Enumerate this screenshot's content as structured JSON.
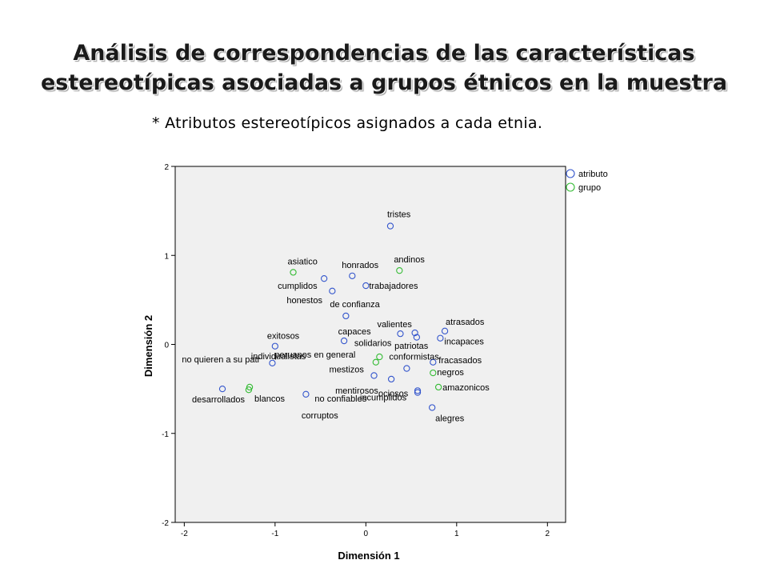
{
  "slide": {
    "title_line1": "Análisis de correspondencias de las características",
    "title_line2": "estereotípicas asociadas a grupos étnicos en la muestra",
    "subtitle": "* Atributos estereotípicos asignados a cada etnia."
  },
  "chart_data": {
    "type": "scatter",
    "xlabel": "Dimensión 1",
    "ylabel": "Dimensión 2",
    "xlim": [
      -2.1,
      2.2
    ],
    "ylim": [
      -2,
      2
    ],
    "xticks": [
      -2,
      -1,
      0,
      1,
      2
    ],
    "yticks": [
      -2,
      -1,
      0,
      1,
      2
    ],
    "grid": false,
    "legend_position": "top-right",
    "colors": {
      "atributo": "#3355cc",
      "grupo": "#33bb33",
      "plot_bg": "#f0f0f0"
    },
    "series": [
      {
        "name": "atributo",
        "points": [
          {
            "label": "tristes",
            "x": 0.27,
            "y": 1.33
          },
          {
            "label": "honrados",
            "x": -0.15,
            "y": 0.77
          },
          {
            "label": "cumplidos",
            "x": -0.46,
            "y": 0.74
          },
          {
            "label": "trabajadores",
            "x": 0.0,
            "y": 0.66
          },
          {
            "label": "honestos",
            "x": -0.37,
            "y": 0.6
          },
          {
            "label": "de confianza",
            "x": -0.22,
            "y": 0.32
          },
          {
            "label": "atrasados",
            "x": 0.87,
            "y": 0.15
          },
          {
            "label": "valientes",
            "x": 0.38,
            "y": 0.12
          },
          {
            "label": "capaces",
            "x": 0.54,
            "y": 0.13
          },
          {
            "label": "incapaces",
            "x": 0.82,
            "y": 0.07
          },
          {
            "label": "solidarios",
            "x": 0.56,
            "y": 0.08
          },
          {
            "label": "exitosos",
            "x": -1.0,
            "y": -0.02
          },
          {
            "label": "patriotas",
            "x": -0.24,
            "y": 0.04
          },
          {
            "label": "fracasados",
            "x": 0.74,
            "y": -0.2
          },
          {
            "label": "peruanos en general",
            "x": -1.03,
            "y": -0.21
          },
          {
            "label": "conformistas",
            "x": 0.45,
            "y": -0.27
          },
          {
            "label": "mestizos",
            "x": 0.09,
            "y": -0.35
          },
          {
            "label": "mentirosos",
            "x": 0.28,
            "y": -0.39
          },
          {
            "label": "ociosos",
            "x": 0.57,
            "y": -0.52
          },
          {
            "label": "desarrollados",
            "x": -1.58,
            "y": -0.5
          },
          {
            "label": "no confiables",
            "x": -0.66,
            "y": -0.56
          },
          {
            "label": "incumplidos",
            "x": 0.57,
            "y": -0.54
          },
          {
            "label": "alegres",
            "x": 0.73,
            "y": -0.71
          }
        ]
      },
      {
        "name": "grupo",
        "points": [
          {
            "label": "asiatico",
            "x": -0.8,
            "y": 0.81
          },
          {
            "label": "andinos",
            "x": 0.37,
            "y": 0.83
          },
          {
            "label": "no quieren a su patr",
            "x": 0.15,
            "y": -0.14
          },
          {
            "label": "individualistas",
            "x": 0.11,
            "y": -0.2
          },
          {
            "label": "negros",
            "x": 0.74,
            "y": -0.32
          },
          {
            "label": "blancos",
            "x": -1.28,
            "y": -0.48
          },
          {
            "label": "corruptos",
            "x": -1.29,
            "y": -0.51
          },
          {
            "label": "amazonicos",
            "x": 0.8,
            "y": -0.48
          }
        ]
      }
    ]
  }
}
